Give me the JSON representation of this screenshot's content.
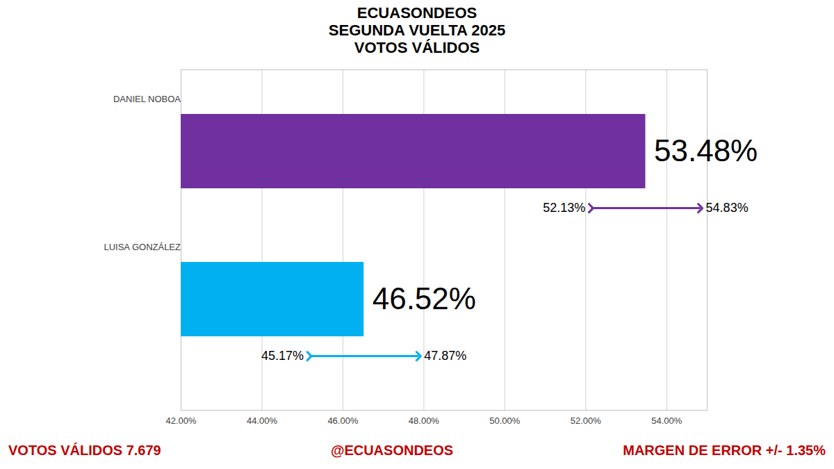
{
  "chart_data": {
    "type": "bar",
    "orientation": "horizontal",
    "title": [
      "ECUASONDEOS",
      "SEGUNDA VUELTA 2025",
      "VOTOS VÁLIDOS"
    ],
    "categories": [
      "DANIEL NOBOA",
      "LUISA GONZÁLEZ"
    ],
    "values": [
      53.48,
      46.52
    ],
    "value_labels": [
      "53.48%",
      "46.52%"
    ],
    "data_labels": true,
    "colors": [
      "#7030a0",
      "#00b0f0"
    ],
    "error_low": [
      52.13,
      45.17
    ],
    "error_low_labels": [
      "52.13%",
      "45.17%"
    ],
    "error_high": [
      54.83,
      47.87
    ],
    "error_high_labels": [
      "54.83%",
      "47.87%"
    ],
    "xlim": [
      42,
      55
    ],
    "xticks": [
      {
        "value": 42,
        "label": "42.00%"
      },
      {
        "value": 44,
        "label": "44.00%"
      },
      {
        "value": 46,
        "label": "46.00%"
      },
      {
        "value": 48,
        "label": "48.00%"
      },
      {
        "value": 50,
        "label": "50.00%"
      },
      {
        "value": 52,
        "label": "52.00%"
      },
      {
        "value": 54,
        "label": "54.00%"
      }
    ],
    "grid": true,
    "annotations": [
      "VOTOS VÁLIDOS 7.679",
      "@ECUASONDEOS",
      "MARGEN DE ERROR +/- 1.35%"
    ]
  }
}
